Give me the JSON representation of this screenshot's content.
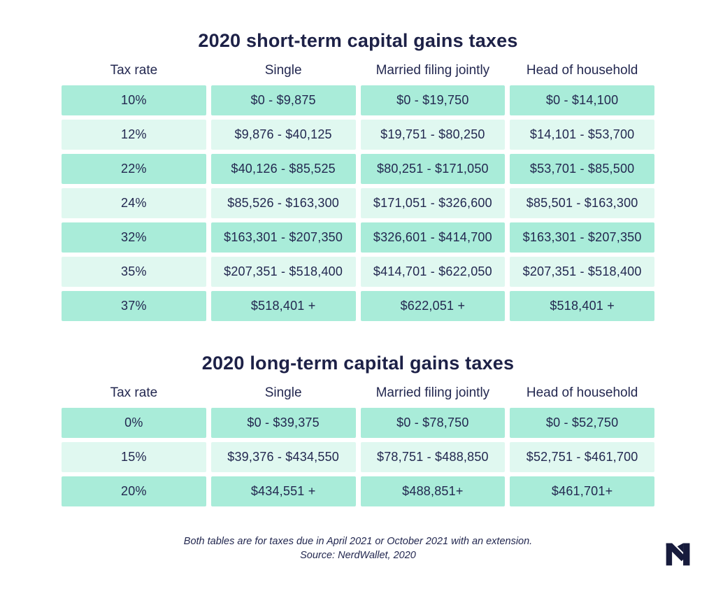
{
  "page": {
    "background": "#ffffff",
    "text_color": "#232850",
    "row_color_teal": "#a9ecd9",
    "row_color_light": "#e0f8f0",
    "logo_color": "#171b3c"
  },
  "chart_data": [
    {
      "type": "table",
      "title": "2020 short-term capital gains taxes",
      "columns": [
        "Tax rate",
        "Single",
        "Married filing jointly",
        "Head of household"
      ],
      "rows": [
        [
          "10%",
          "$0 - $9,875",
          "$0 - $19,750",
          "$0 - $14,100"
        ],
        [
          "12%",
          "$9,876 - $40,125",
          "$19,751 - $80,250",
          "$14,101 - $53,700"
        ],
        [
          "22%",
          "$40,126 - $85,525",
          "$80,251 - $171,050",
          "$53,701 - $85,500"
        ],
        [
          "24%",
          "$85,526 - $163,300",
          "$171,051 - $326,600",
          "$85,501 - $163,300"
        ],
        [
          "32%",
          "$163,301 - $207,350",
          "$326,601 - $414,700",
          "$163,301 - $207,350"
        ],
        [
          "35%",
          "$207,351 - $518,400",
          "$414,701 - $622,050",
          "$207,351 - $518,400"
        ],
        [
          "37%",
          "$518,401 +",
          "$622,051 +",
          "$518,401 +"
        ]
      ]
    },
    {
      "type": "table",
      "title": "2020 long-term capital gains taxes",
      "columns": [
        "Tax rate",
        "Single",
        "Married filing jointly",
        "Head of household"
      ],
      "rows": [
        [
          "0%",
          "$0 - $39,375",
          "$0 - $78,750",
          "$0 - $52,750"
        ],
        [
          "15%",
          "$39,376 - $434,550",
          "$78,751 - $488,850",
          "$52,751 - $461,700"
        ],
        [
          "20%",
          "$434,551 +",
          "$488,851+",
          "$461,701+"
        ]
      ]
    }
  ],
  "footer": {
    "note": "Both tables are for taxes due in April 2021 or October 2021 with an extension.",
    "source": "Source: NerdWallet, 2020",
    "logo_name": "M1-logo"
  }
}
